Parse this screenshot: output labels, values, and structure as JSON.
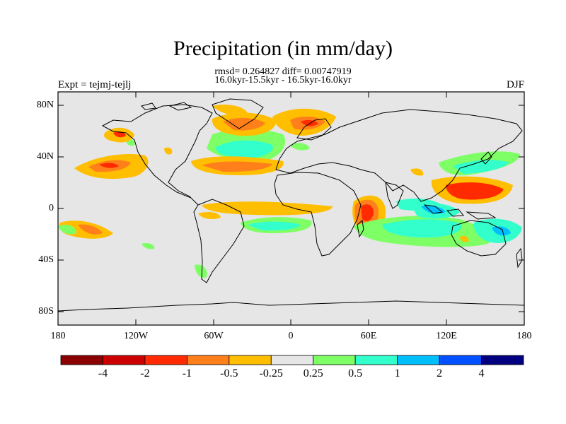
{
  "title": "Precipitation (in mm/day)",
  "stats_line": "rmsd= 0.264827 diff= 0.00747919",
  "period_line": "16.0kyr-15.5kyr - 16.5kyr-16.0kyr",
  "left_label": "Expt = tejmj-tejlj",
  "right_label": "DJF",
  "y_ticks": [
    "80N",
    "40N",
    "0",
    "40S",
    "80S"
  ],
  "x_ticks": [
    "180",
    "120W",
    "60W",
    "0",
    "60E",
    "120E",
    "180"
  ],
  "colorbar": {
    "labels": [
      "-4",
      "-2",
      "-1",
      "-0.5",
      "-0.25",
      "0.25",
      "0.5",
      "1",
      "2",
      "4"
    ],
    "colors": [
      "#8b0000",
      "#cd0000",
      "#ff2a00",
      "#ff7f1a",
      "#ffbe00",
      "#e6e6e6",
      "#7fff66",
      "#33ffcc",
      "#00bfff",
      "#0050ff",
      "#000080"
    ]
  },
  "map_colors": {
    "land_ocean": "#e6e6e6",
    "coast": "#000000"
  }
}
